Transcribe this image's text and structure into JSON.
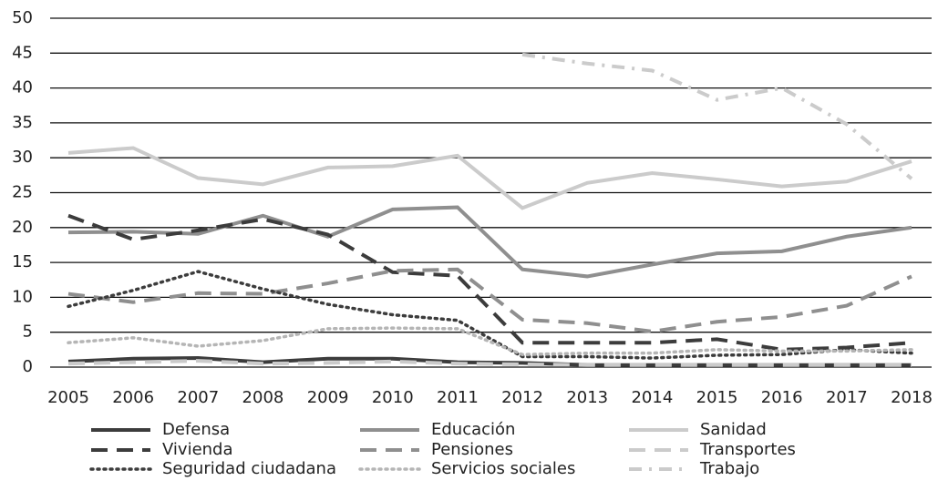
{
  "chart_data": {
    "type": "line",
    "categories": [
      "2005",
      "2006",
      "2007",
      "2008",
      "2009",
      "2010",
      "2011",
      "2012",
      "2013",
      "2014",
      "2015",
      "2016",
      "2017",
      "2018"
    ],
    "ylim": [
      0,
      50
    ],
    "yticks": [
      0,
      5,
      10,
      15,
      20,
      25,
      30,
      35,
      40,
      45,
      50
    ],
    "grid": true,
    "series": [
      {
        "name": "Defensa",
        "color": "#3c3c3c",
        "dash": "solid",
        "values": [
          0.8,
          1.2,
          1.3,
          0.7,
          1.2,
          1.2,
          0.7,
          0.6,
          0.3,
          0.3,
          0.3,
          0.3,
          0.3,
          0.3
        ]
      },
      {
        "name": "Educación",
        "color": "#8f8f8f",
        "dash": "solid",
        "values": [
          19.3,
          19.4,
          19.1,
          21.7,
          18.7,
          22.6,
          22.9,
          14.0,
          13.0,
          14.7,
          16.3,
          16.6,
          18.7,
          20.0
        ]
      },
      {
        "name": "Sanidad",
        "color": "#cbcbcb",
        "dash": "solid",
        "values": [
          30.7,
          31.4,
          27.1,
          26.2,
          28.6,
          28.8,
          30.3,
          22.8,
          26.4,
          27.8,
          26.9,
          25.9,
          26.6,
          29.5
        ]
      },
      {
        "name": "Vivienda",
        "color": "#3c3c3c",
        "dash": "dashed",
        "values": [
          21.7,
          18.3,
          19.6,
          21.2,
          19.0,
          13.6,
          13.1,
          3.5,
          3.5,
          3.5,
          4.0,
          2.5,
          2.8,
          3.5
        ]
      },
      {
        "name": "Pensiones",
        "color": "#8f8f8f",
        "dash": "dashed",
        "values": [
          10.5,
          9.3,
          10.6,
          10.5,
          12.0,
          13.8,
          14.0,
          6.8,
          6.3,
          5.1,
          6.5,
          7.2,
          8.8,
          13.0
        ]
      },
      {
        "name": "Transportes",
        "color": "#cbcbcb",
        "dash": "dashed",
        "values": [
          0.5,
          0.7,
          0.9,
          0.5,
          0.6,
          0.8,
          0.5,
          0.4,
          0.3,
          0.3,
          0.3,
          0.3,
          0.3,
          0.3
        ]
      },
      {
        "name": "Seguridad ciudadana",
        "color": "#3c3c3c",
        "dash": "dotted",
        "values": [
          8.7,
          11.0,
          13.7,
          11.2,
          9.0,
          7.5,
          6.7,
          1.5,
          1.5,
          1.3,
          1.7,
          1.8,
          2.5,
          2.0
        ]
      },
      {
        "name": "Servicios sociales",
        "color": "#b5b5b5",
        "dash": "dotted",
        "values": [
          3.5,
          4.2,
          3.0,
          3.8,
          5.5,
          5.6,
          5.5,
          1.8,
          2.0,
          2.0,
          2.5,
          2.3,
          2.3,
          2.5
        ]
      },
      {
        "name": "Trabajo",
        "color": "#cbcbcb",
        "dash": "dashdot",
        "values": [
          null,
          null,
          null,
          null,
          null,
          null,
          null,
          44.8,
          43.5,
          42.5,
          38.3,
          40.0,
          34.8,
          27.0
        ]
      }
    ]
  }
}
